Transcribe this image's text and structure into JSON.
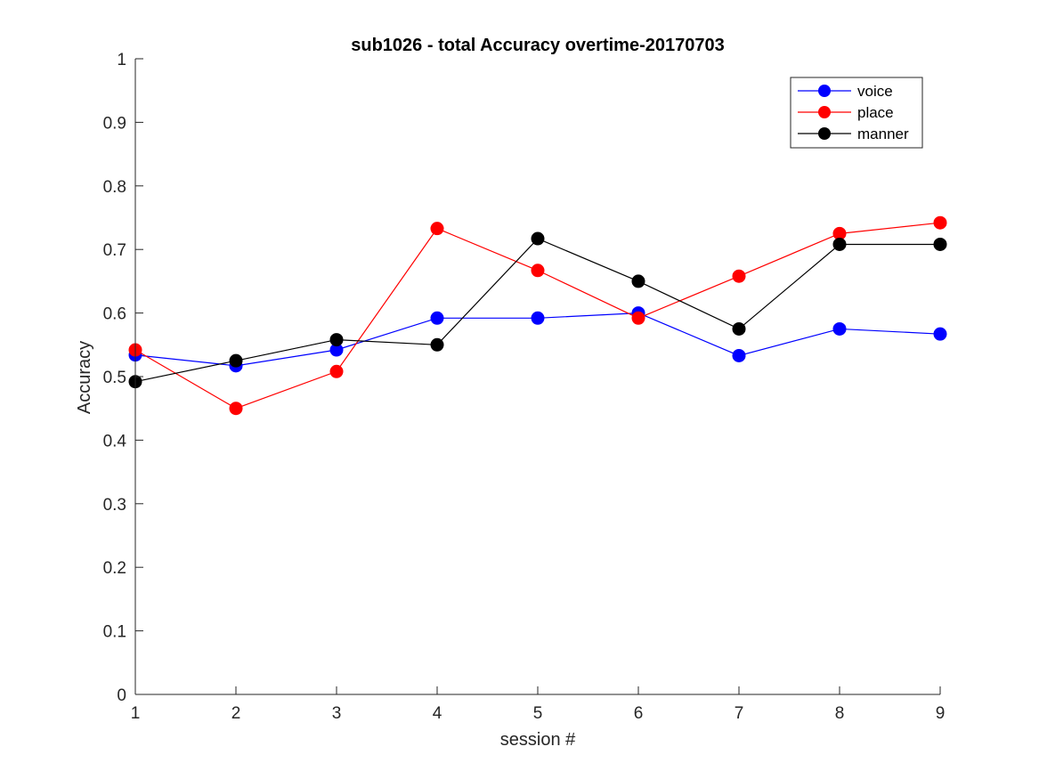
{
  "chart_data": {
    "type": "line",
    "title": "sub1026 - total Accuracy overtime-20170703",
    "xlabel": "session #",
    "ylabel": "Accuracy",
    "x": [
      1,
      2,
      3,
      4,
      5,
      6,
      7,
      8,
      9
    ],
    "xlim": [
      1,
      9
    ],
    "ylim": [
      0,
      1
    ],
    "xticks": [
      "1",
      "2",
      "3",
      "4",
      "5",
      "6",
      "7",
      "8",
      "9"
    ],
    "yticks": [
      "0",
      "0.1",
      "0.2",
      "0.3",
      "0.4",
      "0.5",
      "0.6",
      "0.7",
      "0.8",
      "0.9",
      "1"
    ],
    "grid": false,
    "legend_position": "top-right",
    "series": [
      {
        "name": "voice",
        "color": "#0000ff",
        "values": [
          0.534,
          0.517,
          0.542,
          0.592,
          0.592,
          0.6,
          0.533,
          0.575,
          0.567
        ]
      },
      {
        "name": "place",
        "color": "#ff0000",
        "values": [
          0.542,
          0.45,
          0.508,
          0.733,
          0.667,
          0.592,
          0.658,
          0.725,
          0.742
        ]
      },
      {
        "name": "manner",
        "color": "#000000",
        "values": [
          0.492,
          0.525,
          0.558,
          0.55,
          0.717,
          0.65,
          0.575,
          0.708,
          0.708
        ]
      }
    ]
  }
}
